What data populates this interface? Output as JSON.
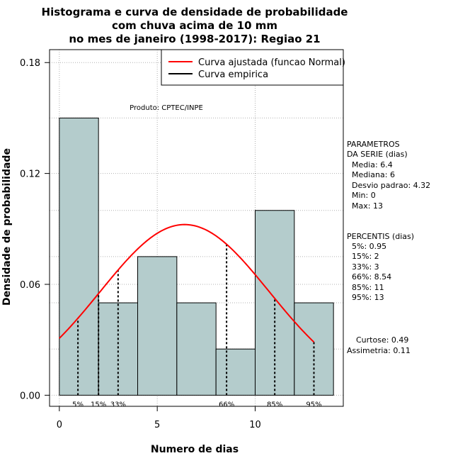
{
  "chart_data": {
    "type": "bar",
    "title_lines": [
      "Histograma e curva de densidade de probabilidade",
      "com chuva acima de 10 mm",
      "no mes de janeiro (1998-2017): Regiao 21"
    ],
    "xlabel": "Numero de dias",
    "ylabel": "Densidade de probabilidade",
    "xlim": [
      -0.5,
      14.5
    ],
    "ylim": [
      -0.006,
      0.187
    ],
    "x_ticks": [
      0,
      5,
      10
    ],
    "y_ticks": [
      "0.00",
      "0.06",
      "0.12",
      "0.18"
    ],
    "grid": true,
    "bins": [
      {
        "from": 0,
        "to": 2,
        "value": 0.15
      },
      {
        "from": 2,
        "to": 4,
        "value": 0.05
      },
      {
        "from": 4,
        "to": 6,
        "value": 0.075
      },
      {
        "from": 6,
        "to": 8,
        "value": 0.05
      },
      {
        "from": 8,
        "to": 10,
        "value": 0.025
      },
      {
        "from": 10,
        "to": 12,
        "value": 0.1
      },
      {
        "from": 12,
        "to": 14,
        "value": 0.05
      }
    ],
    "normal_curve": {
      "mean": 6.4,
      "sd": 4.32,
      "x_from": 0,
      "x_to": 13
    },
    "percentile_markers": [
      {
        "label": "5%",
        "x": 0.95
      },
      {
        "label": "15%",
        "x": 2
      },
      {
        "label": "33%",
        "x": 3
      },
      {
        "label": "66%",
        "x": 8.54
      },
      {
        "label": "85%",
        "x": 11
      },
      {
        "label": "95%",
        "x": 13
      }
    ],
    "legend": {
      "placement": "top-right",
      "items": [
        {
          "label": "Curva ajustada (funcao Normal)",
          "color": "#ff0000"
        },
        {
          "label": "Curva empirica",
          "color": "#000000"
        }
      ]
    },
    "annotation": "Produto: CPTEC/INPE",
    "colors": {
      "bar_fill": "#b4cccc",
      "curve": "#ff0000"
    }
  },
  "side_panel": {
    "params_header": [
      "PARAMETROS",
      "DA SERIE (dias)"
    ],
    "params": [
      "Media: 6.4",
      "Mediana: 6",
      "Desvio padrao: 4.32",
      "Min: 0",
      "Max: 13"
    ],
    "percentis_header": "PERCENTIS (dias)",
    "percentis": [
      "5%: 0.95",
      "15%: 2",
      "33%: 3",
      "66%: 8.54",
      "85%: 11",
      "95%: 13"
    ],
    "stats": [
      "Curtose: 0.49",
      "Assimetria: 0.11"
    ]
  }
}
